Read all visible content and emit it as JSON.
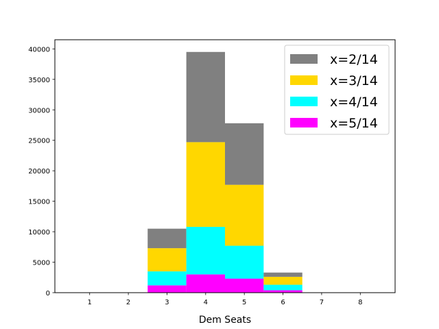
{
  "chart_data": {
    "type": "bar",
    "stacked": true,
    "categories": [
      "1",
      "2",
      "3",
      "4",
      "5",
      "6",
      "7",
      "8"
    ],
    "xlabel": "Dem Seats",
    "ylabel": "",
    "title": "",
    "ylim": [
      0,
      41500
    ],
    "xlim": [
      0.1,
      8.9
    ],
    "yticks": [
      0,
      5000,
      10000,
      15000,
      20000,
      25000,
      30000,
      35000,
      40000
    ],
    "ytick_labels": [
      "0",
      "5000",
      "10000",
      "15000",
      "20000",
      "25000",
      "30000",
      "35000",
      "40000"
    ],
    "grid": false,
    "legend_position": "top-right",
    "series": [
      {
        "name": "x=5/14",
        "color": "#FF00FF",
        "values": [
          0,
          20,
          1200,
          3000,
          2300,
          400,
          0,
          0
        ]
      },
      {
        "name": "x=4/14",
        "color": "#00FFFF",
        "values": [
          0,
          30,
          2300,
          7800,
          5400,
          900,
          50,
          0
        ]
      },
      {
        "name": "x=3/14",
        "color": "#FFD700",
        "values": [
          0,
          0,
          3800,
          13900,
          10000,
          1300,
          0,
          0
        ]
      },
      {
        "name": "x=2/14",
        "color": "#808080",
        "values": [
          0,
          0,
          3200,
          14800,
          10100,
          700,
          0,
          0
        ]
      }
    ],
    "legend_order": [
      "x=2/14",
      "x=3/14",
      "x=4/14",
      "x=5/14"
    ]
  }
}
